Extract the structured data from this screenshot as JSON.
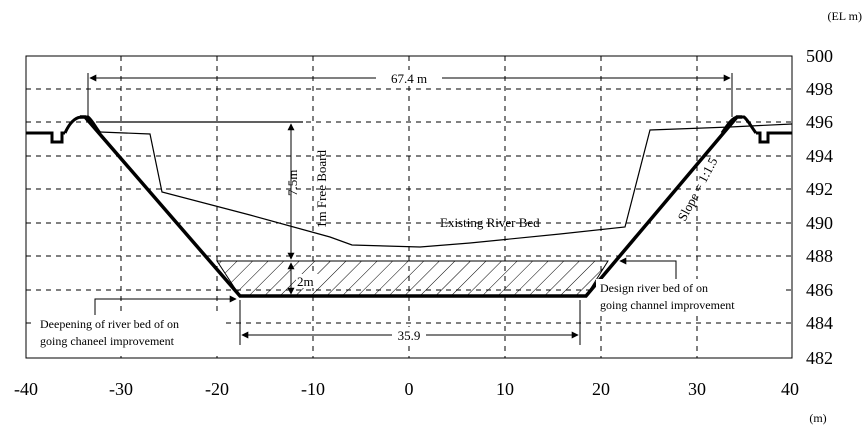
{
  "units": {
    "elevation": "(EL m)",
    "distance": "(m)"
  },
  "axes": {
    "x_ticks": [
      "-40",
      "-30",
      "-20",
      "-10",
      "0",
      "10",
      "20",
      "30",
      "40"
    ],
    "y_ticks": [
      "500",
      "498",
      "496",
      "494",
      "492",
      "490",
      "488",
      "486",
      "484",
      "482"
    ]
  },
  "annotations": {
    "top_width": "67.4 m",
    "bottom_width": "35.9",
    "depth": "7.5m",
    "free_board": "1m Free Board",
    "deepening": "2m",
    "slope": "Slope = 1:1.5",
    "existing_bed": "Existing River Bed",
    "design_bed_line1": "Design river bed of on",
    "design_bed_line2": "going channel improvement",
    "deepening_line1": "Deepening of river bed of on",
    "deepening_line2": "going chaneel improvement"
  },
  "style": {
    "line_color": "#000000",
    "grid_color": "#000000"
  }
}
